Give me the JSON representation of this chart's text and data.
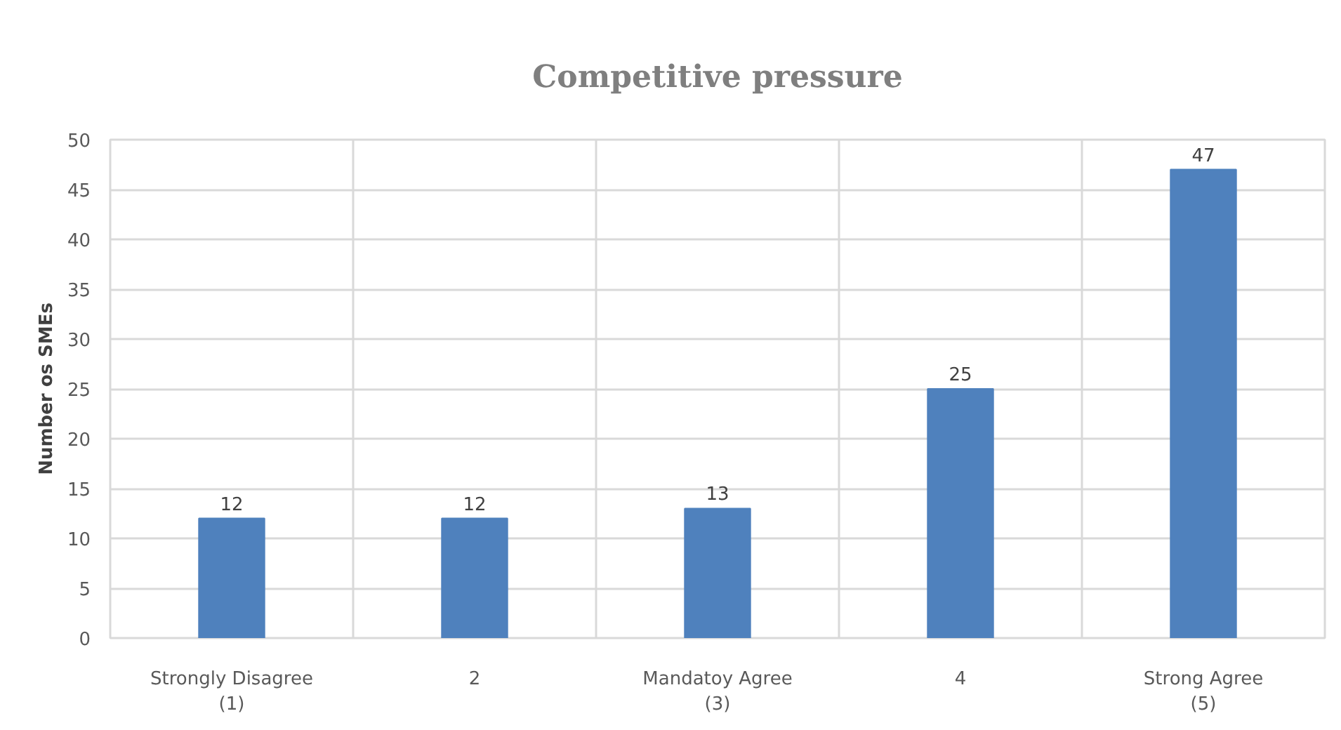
{
  "chart_data": {
    "type": "bar",
    "title": "Competitive pressure",
    "ylabel": "Number os SMEs",
    "categories": [
      "Strongly Disagree\n(1)",
      "2",
      "Mandatoy Agree\n(3)",
      "4",
      "Strong Agree\n(5)"
    ],
    "values": [
      12,
      12,
      13,
      25,
      47
    ],
    "color": "#4f81bd",
    "ylim": [
      0,
      50
    ],
    "yticks": [
      0,
      5,
      10,
      15,
      20,
      25,
      30,
      35,
      40,
      45,
      50
    ],
    "grid": true,
    "data_labels": true
  }
}
